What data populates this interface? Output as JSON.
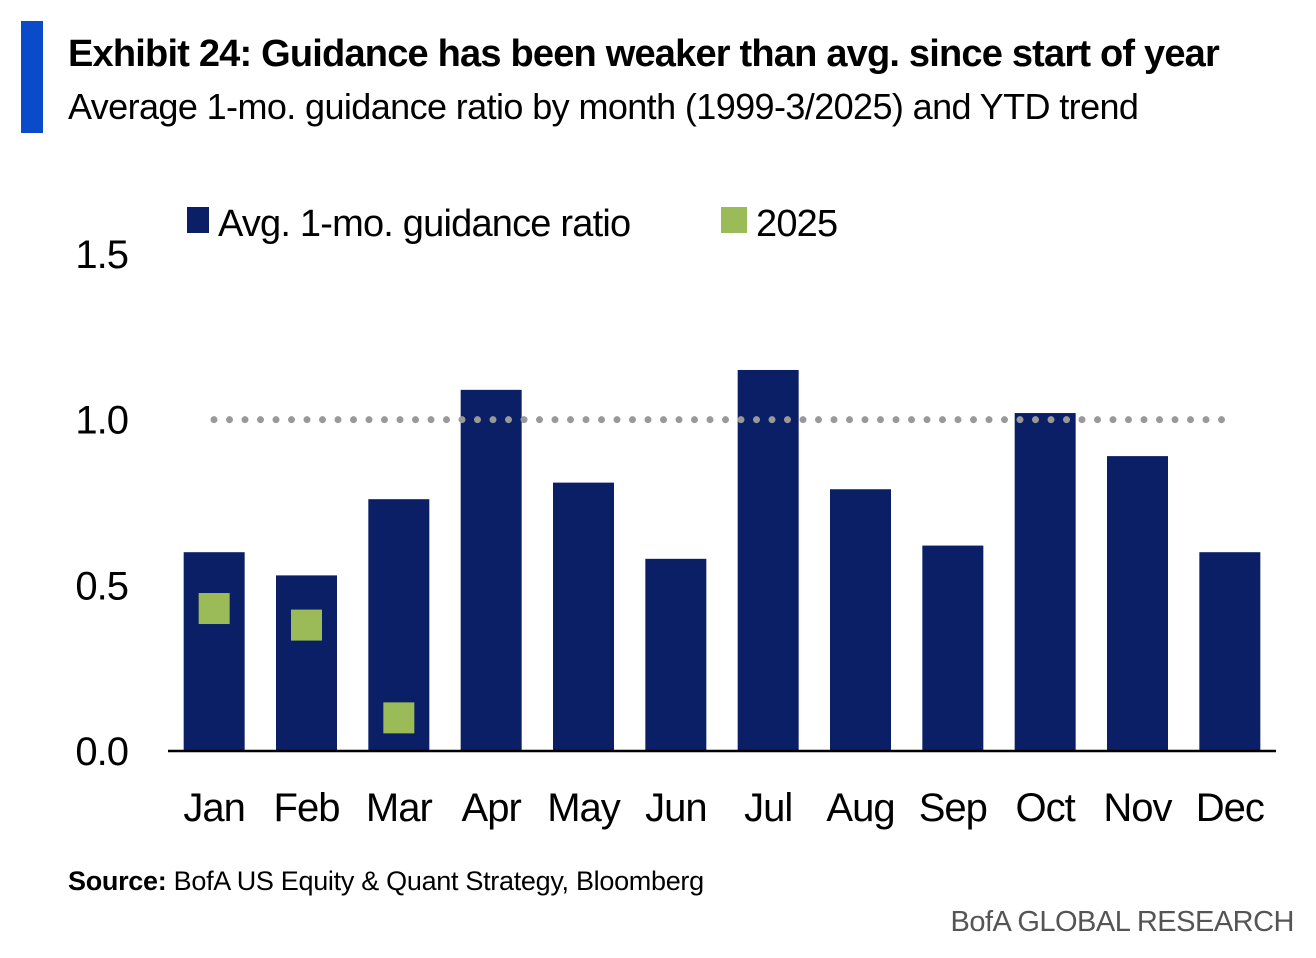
{
  "title": "Exhibit 24: Guidance has been weaker than avg. since start of year",
  "subtitle": "Average 1-mo. guidance ratio by month (1999-3/2025) and YTD trend",
  "source_label": "Source:",
  "source_text": "BofA US Equity & Quant Strategy, Bloomberg",
  "brand": "BofA GLOBAL RESEARCH",
  "colors": {
    "accent": "#0a4bc9",
    "bar": "#0b1f66",
    "marker": "#9bbb59",
    "reference_line": "#999999",
    "axis": "#000000"
  },
  "chart_data": {
    "type": "bar",
    "categories": [
      "Jan",
      "Feb",
      "Mar",
      "Apr",
      "May",
      "Jun",
      "Jul",
      "Aug",
      "Sep",
      "Oct",
      "Nov",
      "Dec"
    ],
    "series": [
      {
        "name": "Avg. 1-mo. guidance ratio",
        "type": "bar",
        "values": [
          0.6,
          0.53,
          0.76,
          1.09,
          0.81,
          0.58,
          1.15,
          0.79,
          0.62,
          1.02,
          0.89,
          0.6
        ]
      },
      {
        "name": "2025",
        "type": "marker",
        "values": [
          0.43,
          0.38,
          0.1,
          null,
          null,
          null,
          null,
          null,
          null,
          null,
          null,
          null
        ]
      }
    ],
    "reference_line": 1.0,
    "ylim": [
      0,
      1.5
    ],
    "yticks": [
      "0.0",
      "0.5",
      "1.0",
      "1.5"
    ],
    "legend_position": "top",
    "grid": false
  }
}
